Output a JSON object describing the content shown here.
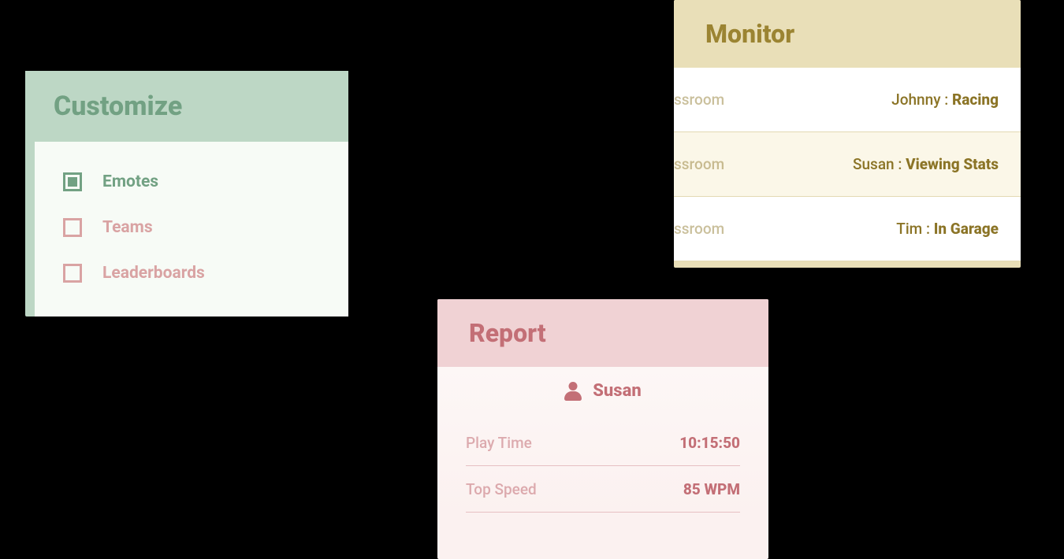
{
  "background_color": "#000000",
  "customize": {
    "title": "Customize",
    "header_bg": "#bdd7c5",
    "header_text": "#72a183",
    "body_bg": "#f7fbf6",
    "checked_color": "#72a183",
    "unchecked_color": "#d9a3a3",
    "items": [
      {
        "label": "Emotes",
        "checked": true
      },
      {
        "label": "Teams",
        "checked": false
      },
      {
        "label": "Leaderboards",
        "checked": false
      }
    ]
  },
  "monitor": {
    "title": "Monitor",
    "header_bg": "#e9dfb8",
    "header_text": "#9b8432",
    "row_border": "#e3d9b3",
    "row_bg_a": "#ffffff",
    "row_bg_b": "#fbf7e8",
    "text_color": "#8b7426",
    "left_text": "ssroom",
    "rows": [
      {
        "name": "Johnny",
        "status": "Racing"
      },
      {
        "name": "Susan",
        "status": "Viewing Stats"
      },
      {
        "name": "Tim",
        "status": "In Garage"
      }
    ]
  },
  "report": {
    "title": "Report",
    "header_bg": "#f0d2d4",
    "header_text": "#c36f76",
    "body_bg": "#fbf1f0",
    "text_color": "#c36f76",
    "divider_color": "#e6c0c2",
    "user": "Susan",
    "stats": [
      {
        "label": "Play Time",
        "value": "10:15:50"
      },
      {
        "label": "Top Speed",
        "value": "85 WPM"
      }
    ]
  }
}
